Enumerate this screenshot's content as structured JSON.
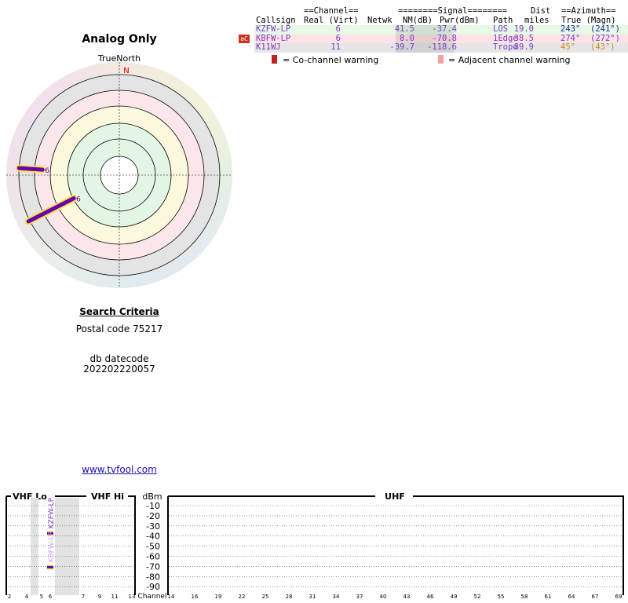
{
  "page": {
    "title": "Analog Only",
    "north_label": "TrueNorth",
    "compass_n": "N",
    "criteria_title": "Search Criteria",
    "postal_code": "Postal code 75217",
    "db_label": "db datecode",
    "db_code": "202202220057",
    "site_link": "www.tvfool.com"
  },
  "table": {
    "header_row1": {
      "channel": "==Channel==",
      "signal": "========Signal========",
      "dist": "Dist",
      "azimuth": "==Azimuth=="
    },
    "header_row2": {
      "callsign": "Callsign",
      "real_virt": "Real (Virt)",
      "netwk": "Netwk",
      "nm": "NM(dB)",
      "pwr": "Pwr(dBm)",
      "path": "Path",
      "miles": "miles",
      "az": "True (Magn)"
    },
    "rows": [
      {
        "callsign": "KZFW-LP",
        "real": "6",
        "netwk": "",
        "nm": "41.5",
        "pwr": "-37.4",
        "path": "LOS",
        "dist": "19.0",
        "az_true": "243°",
        "az_magn": "(241°)",
        "bg": "#e6f8e6",
        "color": "#7a3bc4",
        "az_color": "#1a2aa0",
        "warn": ""
      },
      {
        "callsign": "KBFW-LP",
        "real": "6",
        "netwk": "",
        "nm": "8.0",
        "pwr": "-70.8",
        "path": "1Edge",
        "dist": "38.5",
        "az_true": "274°",
        "az_magn": "(272°)",
        "bg": "#fde3e6",
        "color": "#7a3bc4",
        "az_color": "#7a3bc4",
        "warn": "aC"
      },
      {
        "callsign": "K11WJ",
        "real": "11",
        "netwk": "",
        "nm": "-39.7",
        "pwr": "-118.6",
        "path": "Tropo",
        "dist": "89.9",
        "az_true": "45°",
        "az_magn": "(43°)",
        "bg": "#e6e6e6",
        "color": "#7a3bc4",
        "az_color": "#d08a20",
        "warn": ""
      }
    ]
  },
  "legend": {
    "co_channel": "= Co-channel warning",
    "adjacent": "= Adjacent channel warning",
    "co_color": "#c02020",
    "adj_color": "#f4a0a8"
  },
  "chart_data": [
    {
      "type": "polar",
      "compass": "N",
      "stations": [
        {
          "channel": "6",
          "azimuth_true": 274,
          "nm_db": 8.0
        },
        {
          "channel": "6",
          "azimuth_true": 243,
          "nm_db": 41.5
        }
      ]
    },
    {
      "type": "bar",
      "ylabel": "dBm",
      "xlabel": "Channel",
      "bands": [
        "VHF Lo",
        "VHF Hi",
        "UHF"
      ],
      "yticks": [
        -10,
        -20,
        -30,
        -40,
        -50,
        -60,
        -70,
        -80,
        -90
      ],
      "ylim": [
        -95,
        -5
      ],
      "vhf_ticks": [
        "2",
        "4",
        "5",
        "6",
        "7",
        "9",
        "11",
        "13"
      ],
      "uhf_ticks": [
        "14",
        "16",
        "19",
        "22",
        "25",
        "28",
        "31",
        "34",
        "37",
        "40",
        "43",
        "46",
        "49",
        "52",
        "55",
        "58",
        "61",
        "64",
        "67",
        "69"
      ],
      "stations": [
        {
          "callsign": "KZFW-LP",
          "channel": 6,
          "pwr_dbm": -37.4
        },
        {
          "callsign": "KBFW-LP",
          "channel": 6,
          "pwr_dbm": -70.8
        }
      ]
    }
  ]
}
